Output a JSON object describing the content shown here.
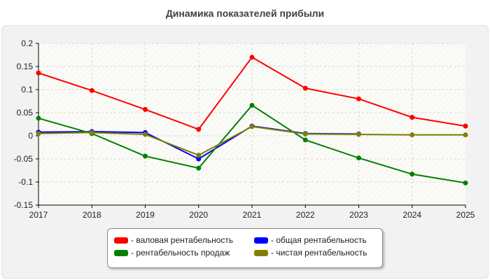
{
  "chart_data": {
    "type": "line",
    "title": "Динамика показателей прибыли",
    "xlabel": "",
    "ylabel": "",
    "categories": [
      "2017",
      "2018",
      "2019",
      "2020",
      "2021",
      "2022",
      "2023",
      "2024",
      "2025"
    ],
    "ylim": [
      -0.15,
      0.2
    ],
    "yticks": [
      0.2,
      0.15,
      0.1,
      0.05,
      0,
      -0.05,
      -0.1,
      -0.15
    ],
    "ytick_labels": [
      "0.2",
      "0.15",
      "0.1",
      "0.05",
      "0",
      "-0.05",
      "-0.1",
      "-0.15"
    ],
    "grid": true,
    "legend_position": "bottom-center",
    "series": [
      {
        "name": "- валовая рентабельность",
        "color": "#ff0000",
        "values": [
          0.136,
          0.098,
          0.057,
          0.014,
          0.17,
          0.103,
          0.08,
          0.04,
          0.021
        ]
      },
      {
        "name": "- общая рентабельность",
        "color": "#0000ff",
        "values": [
          0.008,
          0.009,
          0.007,
          -0.05,
          0.021,
          0.005,
          0.004,
          null,
          null
        ]
      },
      {
        "name": "- рентабельность продаж",
        "color": "#008000",
        "values": [
          0.038,
          0.005,
          -0.044,
          -0.07,
          0.066,
          -0.009,
          -0.048,
          -0.083,
          -0.102
        ]
      },
      {
        "name": "- чистая рентабельность",
        "color": "#808000",
        "values": [
          0.005,
          0.007,
          0.003,
          -0.042,
          0.02,
          0.004,
          0.003,
          0.002,
          0.002
        ]
      }
    ]
  }
}
